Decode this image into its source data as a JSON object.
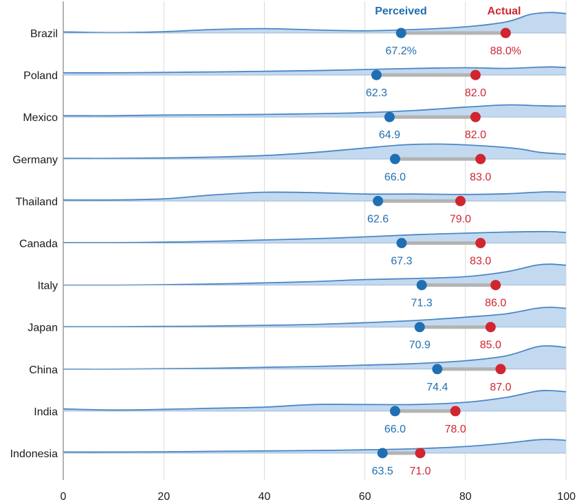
{
  "chart_data": {
    "type": "dumbbell-ridgeline",
    "legend": {
      "perceived": "Perceived",
      "actual": "Actual"
    },
    "colors": {
      "perceived": "#1f6fb2",
      "actual": "#d12530",
      "connector": "#b3b3b3",
      "density_fill": "#c2d9f0",
      "density_line": "#4a87c4",
      "grid": "#d9d9d9"
    },
    "xlim": [
      0,
      100
    ],
    "x_ticks": [
      0,
      20,
      40,
      60,
      80,
      100
    ],
    "grid": true,
    "rows": [
      {
        "country": "Brazil",
        "perceived": 67.2,
        "actual": 88.0,
        "perceived_label": "67.2%",
        "actual_label": "88.0%",
        "density": [
          [
            0,
            0.05
          ],
          [
            10,
            0.02
          ],
          [
            20,
            0.06
          ],
          [
            30,
            0.16
          ],
          [
            40,
            0.2
          ],
          [
            50,
            0.14
          ],
          [
            60,
            0.1
          ],
          [
            70,
            0.16
          ],
          [
            80,
            0.28
          ],
          [
            88,
            0.5
          ],
          [
            93,
            0.85
          ],
          [
            97,
            0.93
          ],
          [
            100,
            0.88
          ]
        ]
      },
      {
        "country": "Poland",
        "perceived": 62.3,
        "actual": 82.0,
        "perceived_label": "62.3",
        "actual_label": "82.0",
        "density": [
          [
            0,
            0.1
          ],
          [
            10,
            0.1
          ],
          [
            20,
            0.12
          ],
          [
            30,
            0.14
          ],
          [
            40,
            0.17
          ],
          [
            50,
            0.2
          ],
          [
            60,
            0.25
          ],
          [
            70,
            0.3
          ],
          [
            80,
            0.33
          ],
          [
            88,
            0.3
          ],
          [
            94,
            0.35
          ],
          [
            97,
            0.37
          ],
          [
            100,
            0.34
          ]
        ]
      },
      {
        "country": "Mexico",
        "perceived": 64.9,
        "actual": 82.0,
        "perceived_label": "64.9",
        "actual_label": "82.0",
        "density": [
          [
            0,
            0.06
          ],
          [
            10,
            0.06
          ],
          [
            20,
            0.09
          ],
          [
            30,
            0.1
          ],
          [
            40,
            0.12
          ],
          [
            50,
            0.15
          ],
          [
            60,
            0.2
          ],
          [
            70,
            0.3
          ],
          [
            80,
            0.45
          ],
          [
            88,
            0.55
          ],
          [
            94,
            0.52
          ],
          [
            97,
            0.5
          ],
          [
            100,
            0.5
          ]
        ]
      },
      {
        "country": "Germany",
        "perceived": 66.0,
        "actual": 83.0,
        "perceived_label": "66.0",
        "actual_label": "83.0",
        "density": [
          [
            0,
            0.03
          ],
          [
            10,
            0.03
          ],
          [
            20,
            0.05
          ],
          [
            30,
            0.09
          ],
          [
            40,
            0.16
          ],
          [
            50,
            0.3
          ],
          [
            60,
            0.5
          ],
          [
            68,
            0.65
          ],
          [
            75,
            0.68
          ],
          [
            82,
            0.62
          ],
          [
            90,
            0.48
          ],
          [
            95,
            0.3
          ],
          [
            100,
            0.22
          ]
        ]
      },
      {
        "country": "Thailand",
        "perceived": 62.6,
        "actual": 79.0,
        "perceived_label": "62.6",
        "actual_label": "79.0",
        "density": [
          [
            0,
            0.05
          ],
          [
            10,
            0.05
          ],
          [
            20,
            0.1
          ],
          [
            30,
            0.28
          ],
          [
            40,
            0.4
          ],
          [
            50,
            0.38
          ],
          [
            60,
            0.32
          ],
          [
            70,
            0.32
          ],
          [
            80,
            0.3
          ],
          [
            88,
            0.33
          ],
          [
            94,
            0.4
          ],
          [
            97,
            0.42
          ],
          [
            100,
            0.4
          ]
        ]
      },
      {
        "country": "Canada",
        "perceived": 67.3,
        "actual": 83.0,
        "perceived_label": "67.3",
        "actual_label": "83.0",
        "density": [
          [
            0,
            0.02
          ],
          [
            10,
            0.02
          ],
          [
            20,
            0.04
          ],
          [
            30,
            0.08
          ],
          [
            40,
            0.14
          ],
          [
            50,
            0.2
          ],
          [
            60,
            0.28
          ],
          [
            70,
            0.38
          ],
          [
            80,
            0.45
          ],
          [
            88,
            0.5
          ],
          [
            94,
            0.52
          ],
          [
            97,
            0.52
          ],
          [
            100,
            0.48
          ]
        ]
      },
      {
        "country": "Italy",
        "perceived": 71.3,
        "actual": 86.0,
        "perceived_label": "71.3",
        "actual_label": "86.0",
        "density": [
          [
            0,
            0.0
          ],
          [
            10,
            0.0
          ],
          [
            20,
            0.02
          ],
          [
            30,
            0.05
          ],
          [
            40,
            0.1
          ],
          [
            50,
            0.16
          ],
          [
            60,
            0.25
          ],
          [
            70,
            0.3
          ],
          [
            80,
            0.38
          ],
          [
            88,
            0.6
          ],
          [
            94,
            0.9
          ],
          [
            97,
            0.95
          ],
          [
            100,
            0.9
          ]
        ]
      },
      {
        "country": "Japan",
        "perceived": 70.9,
        "actual": 85.0,
        "perceived_label": "70.9",
        "actual_label": "85.0",
        "density": [
          [
            0,
            0.02
          ],
          [
            10,
            0.02
          ],
          [
            20,
            0.03
          ],
          [
            30,
            0.05
          ],
          [
            40,
            0.08
          ],
          [
            50,
            0.12
          ],
          [
            60,
            0.2
          ],
          [
            70,
            0.3
          ],
          [
            80,
            0.45
          ],
          [
            88,
            0.6
          ],
          [
            94,
            0.85
          ],
          [
            97,
            0.9
          ],
          [
            100,
            0.85
          ]
        ]
      },
      {
        "country": "China",
        "perceived": 74.4,
        "actual": 87.0,
        "perceived_label": "74.4",
        "actual_label": "87.0",
        "density": [
          [
            0,
            0.0
          ],
          [
            10,
            0.0
          ],
          [
            20,
            0.02
          ],
          [
            30,
            0.04
          ],
          [
            40,
            0.08
          ],
          [
            50,
            0.12
          ],
          [
            60,
            0.18
          ],
          [
            70,
            0.25
          ],
          [
            80,
            0.38
          ],
          [
            88,
            0.6
          ],
          [
            94,
            1.0
          ],
          [
            97,
            1.05
          ],
          [
            100,
            0.98
          ]
        ]
      },
      {
        "country": "India",
        "perceived": 66.0,
        "actual": 78.0,
        "perceived_label": "66.0",
        "actual_label": "78.0",
        "density": [
          [
            0,
            0.1
          ],
          [
            10,
            0.05
          ],
          [
            20,
            0.08
          ],
          [
            30,
            0.13
          ],
          [
            40,
            0.18
          ],
          [
            50,
            0.3
          ],
          [
            60,
            0.3
          ],
          [
            70,
            0.3
          ],
          [
            80,
            0.4
          ],
          [
            88,
            0.62
          ],
          [
            94,
            0.9
          ],
          [
            97,
            0.93
          ],
          [
            100,
            0.88
          ]
        ]
      },
      {
        "country": "Indonesia",
        "perceived": 63.5,
        "actual": 71.0,
        "perceived_label": "63.5",
        "actual_label": "71.0",
        "density": [
          [
            0,
            0.05
          ],
          [
            10,
            0.05
          ],
          [
            20,
            0.06
          ],
          [
            30,
            0.08
          ],
          [
            40,
            0.1
          ],
          [
            50,
            0.12
          ],
          [
            60,
            0.15
          ],
          [
            70,
            0.2
          ],
          [
            80,
            0.3
          ],
          [
            88,
            0.45
          ],
          [
            94,
            0.6
          ],
          [
            97,
            0.62
          ],
          [
            100,
            0.58
          ]
        ]
      }
    ]
  }
}
